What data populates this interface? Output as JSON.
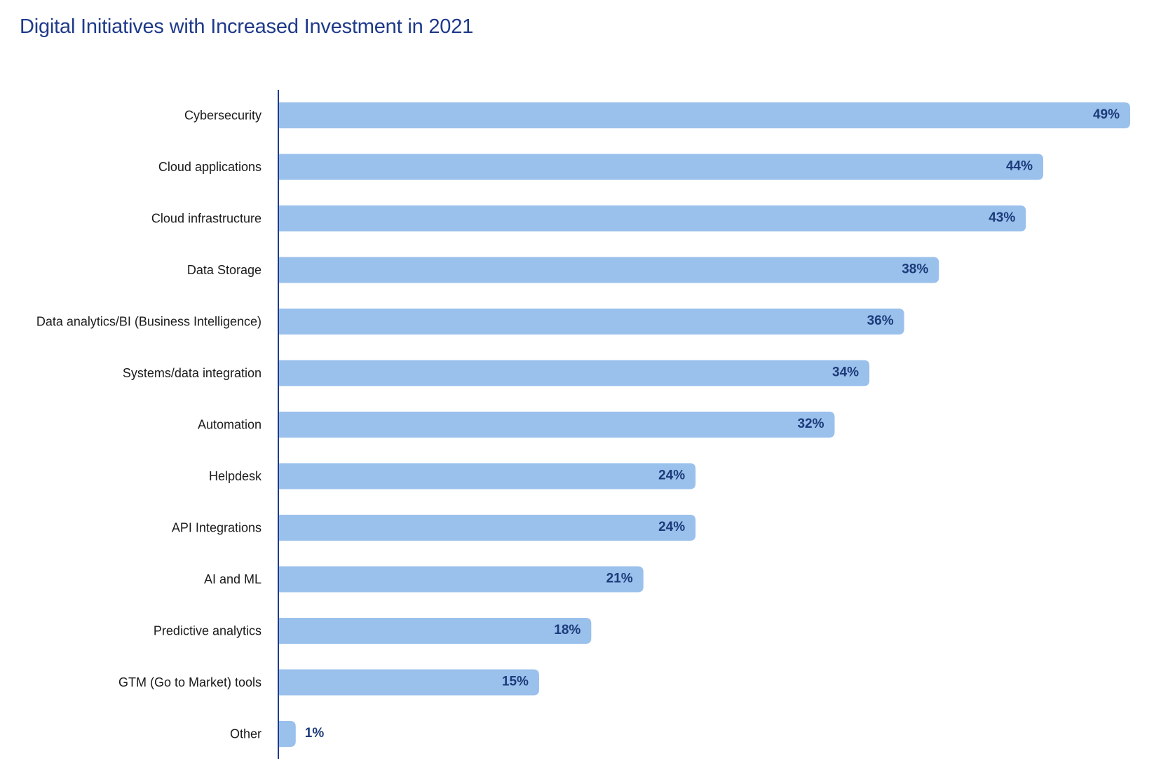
{
  "colors": {
    "title": "#1f3a8a",
    "bar": "#9ac0ec",
    "axis": "#1f3a8a",
    "value_label": "#1c3b7a",
    "category_label": "#1a1a1a"
  },
  "chart_data": {
    "type": "bar",
    "orientation": "horizontal",
    "title": "Digital Initiatives with Increased Investment in 2021",
    "xlabel": "",
    "ylabel": "",
    "categories": [
      "Cybersecurity",
      "Cloud applications",
      "Cloud infrastructure",
      "Data Storage",
      "Data analytics/BI (Business Intelligence)",
      "Systems/data integration",
      "Automation",
      "Helpdesk",
      "API Integrations",
      "AI and ML",
      "Predictive analytics",
      "GTM (Go to Market) tools",
      "Other"
    ],
    "values": [
      49,
      44,
      43,
      38,
      36,
      34,
      32,
      24,
      24,
      21,
      18,
      15,
      1
    ],
    "value_labels": [
      "49%",
      "44%",
      "43%",
      "38%",
      "36%",
      "34%",
      "32%",
      "24%",
      "24%",
      "21%",
      "18%",
      "15%",
      "1%"
    ],
    "unit": "%",
    "xlim": [
      0,
      49
    ],
    "grid": false,
    "legend": "none"
  }
}
